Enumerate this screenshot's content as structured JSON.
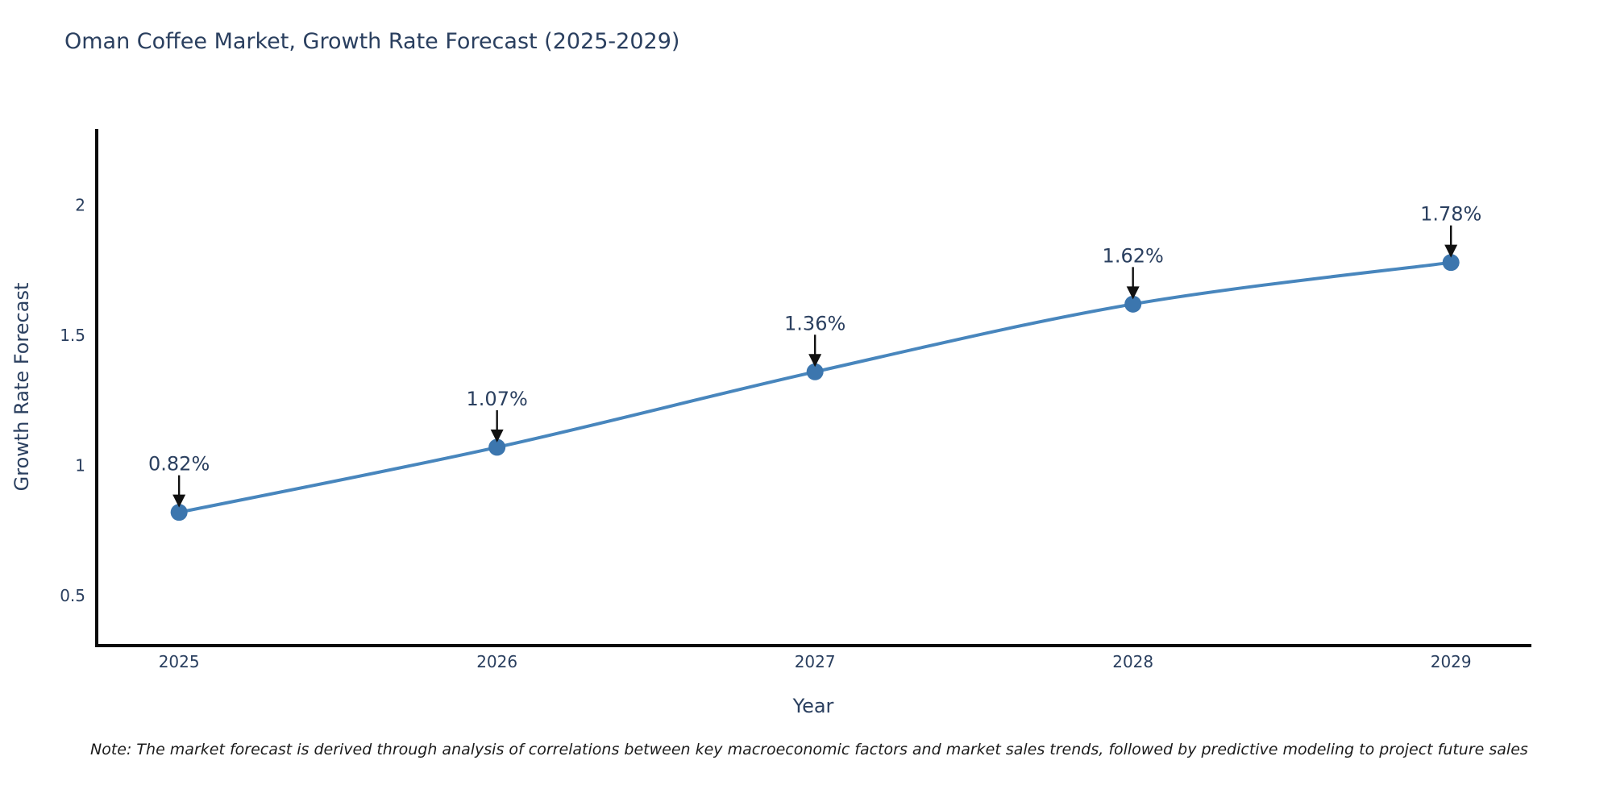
{
  "title": "Oman Coffee Market, Growth Rate Forecast (2025-2029)",
  "note": "Note: The market forecast is derived through analysis of correlations between key macroeconomic factors and market sales trends, followed by predictive modeling to project future sales",
  "chart_data": {
    "type": "line",
    "title": "Oman Coffee Market, Growth Rate Forecast (2025-2029)",
    "xlabel": "Year",
    "ylabel": "Growth Rate Forecast",
    "categories": [
      2025,
      2026,
      2027,
      2028,
      2029
    ],
    "series": [
      {
        "name": "Growth Rate Forecast",
        "values": [
          0.82,
          1.07,
          1.36,
          1.62,
          1.78
        ],
        "point_labels": [
          "0.82%",
          "1.07%",
          "1.36%",
          "1.62%",
          "1.78%"
        ]
      }
    ],
    "xtick_labels": [
      "2025",
      "2026",
      "2027",
      "2028",
      "2029"
    ],
    "ytick_values": [
      0.5,
      1,
      1.5,
      2
    ],
    "ytick_labels": [
      "0.5",
      "1",
      "1.5",
      "2"
    ],
    "xlim": [
      2024.736,
      2029.253
    ],
    "ylim": [
      0.308,
      2.293
    ],
    "grid": false,
    "legend": "none",
    "line_shape": "spline",
    "annotations_have_arrows": true
  },
  "colors": {
    "background": "#ffffff",
    "title_text": "#2a3f5f",
    "tick_text": "#2a3f5f",
    "annotation_text": "#2a3f5f",
    "axis_line": "#0a0a0a",
    "series_line": "#4886bd",
    "marker_fill": "#3c76ae",
    "arrow": "#111111",
    "note_text": "#1c1c1c"
  }
}
